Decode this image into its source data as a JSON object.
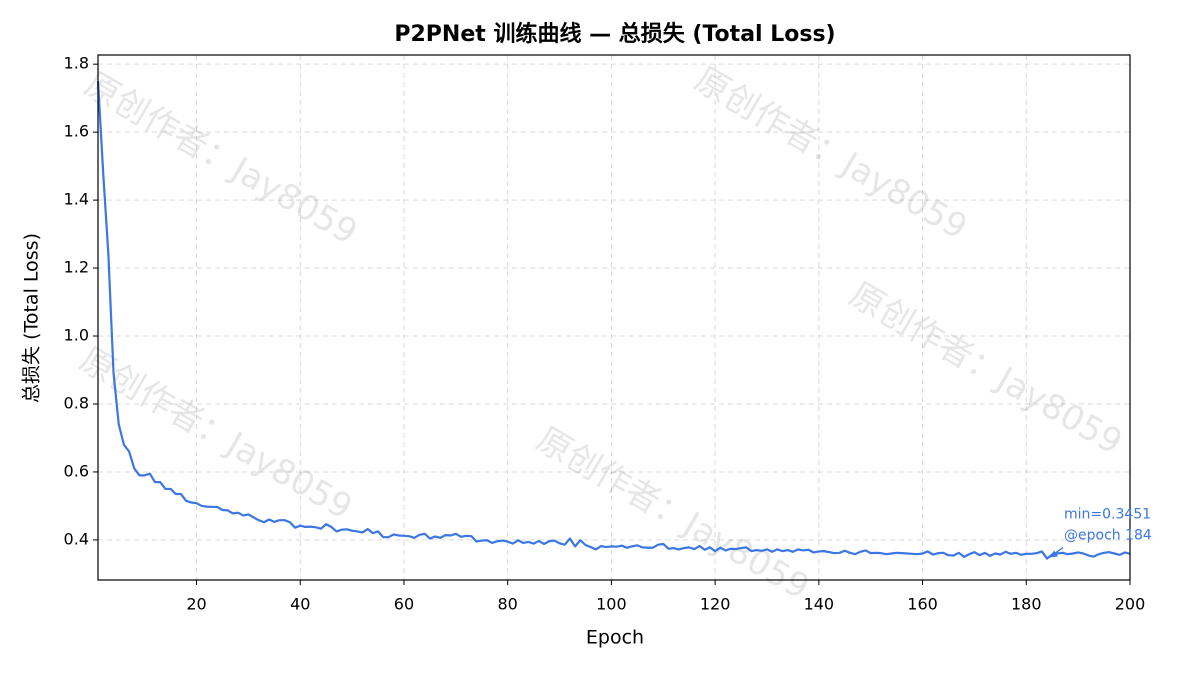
{
  "chart_data": {
    "type": "line",
    "title": "P2PNet 训练曲线 — 总损失 (Total Loss)",
    "x_label": "Epoch",
    "y_label": "总损失 (Total Loss)",
    "watermark": "原创作者：Jay8059",
    "color": "#3b76e3",
    "grid": true,
    "xlim": [
      1,
      200
    ],
    "ylim": [
      0.282,
      1.827
    ],
    "xticks": [
      20,
      40,
      60,
      80,
      100,
      120,
      140,
      160,
      180,
      200
    ],
    "yticks": [
      {
        "value": 0.4,
        "label": "0.4"
      },
      {
        "value": 0.6,
        "label": "0.6"
      },
      {
        "value": 0.8,
        "label": "0.8"
      },
      {
        "value": 1.0,
        "label": "1.0"
      },
      {
        "value": 1.2,
        "label": "1.2"
      },
      {
        "value": 1.4,
        "label": "1.4"
      },
      {
        "value": 1.6,
        "label": "1.6"
      },
      {
        "value": 1.8,
        "label": "1.8"
      }
    ],
    "annotation": {
      "text": [
        "min=0.3451",
        "@epoch 184"
      ],
      "x": 184,
      "y": 0.3451
    },
    "x": [
      1,
      2,
      3,
      4,
      5,
      6,
      7,
      8,
      9,
      10,
      11,
      12,
      13,
      14,
      15,
      16,
      17,
      18,
      19,
      20,
      21,
      22,
      23,
      24,
      25,
      26,
      27,
      28,
      29,
      30,
      31,
      32,
      33,
      34,
      35,
      36,
      37,
      38,
      39,
      40,
      41,
      42,
      43,
      44,
      45,
      46,
      47,
      48,
      49,
      50,
      51,
      52,
      53,
      54,
      55,
      56,
      57,
      58,
      59,
      60,
      61,
      62,
      63,
      64,
      65,
      66,
      67,
      68,
      69,
      70,
      71,
      72,
      73,
      74,
      75,
      76,
      77,
      78,
      79,
      80,
      81,
      82,
      83,
      84,
      85,
      86,
      87,
      88,
      89,
      90,
      91,
      92,
      93,
      94,
      95,
      96,
      97,
      98,
      99,
      100,
      101,
      102,
      103,
      104,
      105,
      106,
      107,
      108,
      109,
      110,
      111,
      112,
      113,
      114,
      115,
      116,
      117,
      118,
      119,
      120,
      121,
      122,
      123,
      124,
      125,
      126,
      127,
      128,
      129,
      130,
      131,
      132,
      133,
      134,
      135,
      136,
      137,
      138,
      139,
      140,
      141,
      142,
      143,
      144,
      145,
      146,
      147,
      148,
      149,
      150,
      151,
      152,
      153,
      154,
      155,
      156,
      157,
      158,
      159,
      160,
      161,
      162,
      163,
      164,
      165,
      166,
      167,
      168,
      169,
      170,
      171,
      172,
      173,
      174,
      175,
      176,
      177,
      178,
      179,
      180,
      181,
      182,
      183,
      184,
      185,
      186,
      187,
      188,
      189,
      190,
      191,
      192,
      193,
      194,
      195,
      196,
      197,
      198,
      199,
      200
    ],
    "values": [
      1.75,
      1.48,
      1.24,
      0.89,
      0.74,
      0.68,
      0.66,
      0.61,
      0.59,
      0.59,
      0.595,
      0.57,
      0.57,
      0.55,
      0.55,
      0.535,
      0.535,
      0.515,
      0.51,
      0.508,
      0.5,
      0.498,
      0.497,
      0.497,
      0.488,
      0.487,
      0.478,
      0.48,
      0.472,
      0.475,
      0.466,
      0.458,
      0.452,
      0.46,
      0.453,
      0.458,
      0.458,
      0.452,
      0.436,
      0.442,
      0.438,
      0.439,
      0.437,
      0.433,
      0.446,
      0.438,
      0.425,
      0.43,
      0.431,
      0.427,
      0.425,
      0.422,
      0.432,
      0.42,
      0.425,
      0.408,
      0.408,
      0.416,
      0.413,
      0.412,
      0.411,
      0.406,
      0.415,
      0.418,
      0.404,
      0.41,
      0.406,
      0.414,
      0.413,
      0.418,
      0.409,
      0.412,
      0.411,
      0.395,
      0.398,
      0.399,
      0.391,
      0.396,
      0.398,
      0.395,
      0.389,
      0.399,
      0.391,
      0.394,
      0.389,
      0.397,
      0.388,
      0.396,
      0.398,
      0.39,
      0.386,
      0.404,
      0.381,
      0.399,
      0.385,
      0.379,
      0.372,
      0.382,
      0.379,
      0.381,
      0.38,
      0.383,
      0.377,
      0.381,
      0.384,
      0.378,
      0.377,
      0.377,
      0.386,
      0.388,
      0.374,
      0.376,
      0.372,
      0.376,
      0.378,
      0.373,
      0.382,
      0.371,
      0.378,
      0.367,
      0.377,
      0.369,
      0.374,
      0.373,
      0.376,
      0.378,
      0.367,
      0.37,
      0.368,
      0.372,
      0.365,
      0.372,
      0.367,
      0.37,
      0.365,
      0.372,
      0.369,
      0.371,
      0.363,
      0.366,
      0.367,
      0.364,
      0.361,
      0.362,
      0.368,
      0.362,
      0.358,
      0.365,
      0.369,
      0.361,
      0.362,
      0.361,
      0.358,
      0.36,
      0.362,
      0.361,
      0.36,
      0.359,
      0.358,
      0.36,
      0.366,
      0.357,
      0.361,
      0.362,
      0.355,
      0.354,
      0.362,
      0.35,
      0.358,
      0.364,
      0.355,
      0.362,
      0.353,
      0.36,
      0.357,
      0.365,
      0.359,
      0.362,
      0.356,
      0.359,
      0.359,
      0.361,
      0.366,
      0.3451,
      0.357,
      0.36,
      0.362,
      0.358,
      0.36,
      0.363,
      0.36,
      0.354,
      0.351,
      0.358,
      0.362,
      0.364,
      0.36,
      0.356,
      0.363,
      0.359
    ]
  }
}
